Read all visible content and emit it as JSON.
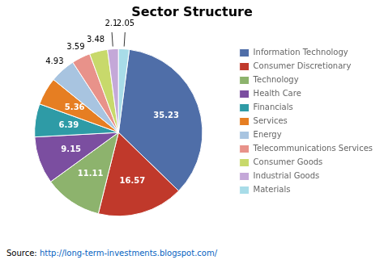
{
  "chart_data": {
    "type": "pie",
    "title": "Sector Structure",
    "categories": [
      "Information Technology",
      "Consumer Discretionary",
      "Technology",
      "Health Care",
      "Financials",
      "Services",
      "Energy",
      "Telecommunications Services",
      "Consumer Goods",
      "Industrial Goods",
      "Materials"
    ],
    "values": [
      35.23,
      16.57,
      11.11,
      9.15,
      6.39,
      5.36,
      4.93,
      3.59,
      3.48,
      2.1,
      2.05
    ],
    "colors": [
      "#4F6EA8",
      "#C0392B",
      "#8DB36D",
      "#7B4EA0",
      "#2E9BA6",
      "#E67E22",
      "#A8C4E0",
      "#E8928A",
      "#C8D96B",
      "#C4A8D8",
      "#A8DCE8"
    ],
    "data_labels": true,
    "legend": "right",
    "annotations": [
      {
        "text": "Source: "
      },
      {
        "text": "http://long-term-investments.blogspot.com/",
        "color": "#0563C1"
      }
    ]
  }
}
